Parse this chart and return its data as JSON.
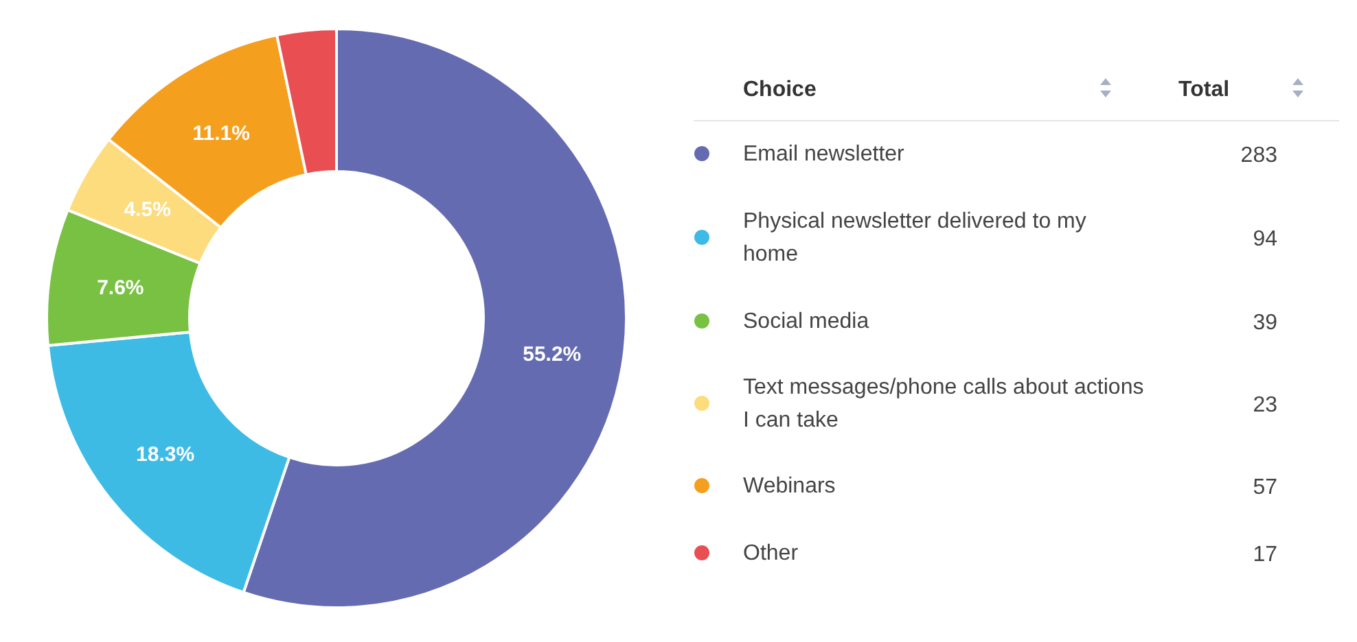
{
  "chart_data": {
    "type": "donut",
    "legend": "right",
    "legend_title": "Choice",
    "annotations": [
      "Total",
      {
        "text": "283",
        "x": "Email newsletter"
      },
      {
        "text": "94",
        "x": "Physical newsletter delivered to my home"
      },
      {
        "text": "39",
        "x": "Social media"
      },
      {
        "text": "23",
        "x": "Text messages/phone calls about actions I can take"
      },
      {
        "text": "57",
        "x": "Webinars"
      },
      {
        "text": "17",
        "x": "Other"
      }
    ],
    "categories": [
      "Email newsletter",
      "Physical newsletter delivered to my home",
      "Social media",
      "Text messages/phone calls about actions I can take",
      "Webinars",
      "Other"
    ],
    "values": [
      55.2,
      18.3,
      7.6,
      4.5,
      11.1,
      3.3
    ],
    "colors": [
      "#646bb0",
      "#3dbbe5",
      "#78c143",
      "#fcdc7c",
      "#f59f1f",
      "#e84e52"
    ],
    "value_labels": [
      "55.2%",
      "18.3%",
      "7.6%",
      "4.5%",
      "11.1%",
      null
    ]
  }
}
